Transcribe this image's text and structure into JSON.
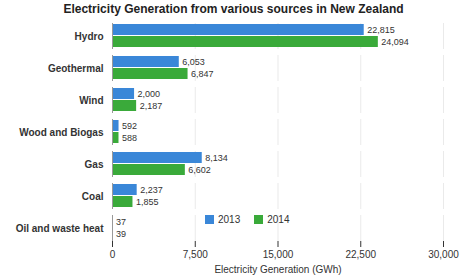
{
  "chart_data": {
    "type": "bar",
    "orientation": "horizontal",
    "title": "Electricity Generation from various sources in New Zealand",
    "x_label": "Electricity Generation (GWh)",
    "categories": [
      "Hydro",
      "Geothermal",
      "Wind",
      "Wood and Biogas",
      "Gas",
      "Coal",
      "Oil and waste heat"
    ],
    "series": [
      {
        "name": "2013",
        "color": "#3a87d8",
        "values": [
          22815,
          6053,
          2000,
          592,
          8134,
          2237,
          37
        ],
        "value_labels": [
          "22,815",
          "6,053",
          "2,000",
          "592",
          "8,134",
          "2,237",
          "37"
        ]
      },
      {
        "name": "2014",
        "color": "#3aaa3a",
        "values": [
          24094,
          6847,
          2187,
          588,
          6602,
          1855,
          39
        ],
        "value_labels": [
          "24,094",
          "6,847",
          "2,187",
          "588",
          "6,602",
          "1,855",
          "39"
        ]
      }
    ],
    "xlim": [
      0,
      30000
    ],
    "xticks": [
      0,
      {
        "value": 7500,
        "label": "7,500"
      },
      {
        "value": 15000,
        "label": "15,000"
      },
      {
        "value": 22500,
        "label": "22,500"
      },
      {
        "value": 30000,
        "label": "30,000"
      }
    ],
    "grid": true,
    "data_labels": true,
    "legend": "bottom"
  }
}
